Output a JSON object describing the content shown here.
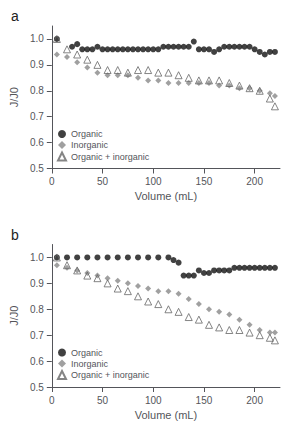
{
  "chart_data": [
    {
      "type": "scatter",
      "title": "a",
      "xlabel": "Volume (mL)",
      "ylabel": "J/J0",
      "xlim": [
        0,
        225
      ],
      "xticks": [
        0,
        50,
        100,
        150,
        200
      ],
      "ylim": [
        0.5,
        1.05
      ],
      "yticks": [
        0.5,
        0.6,
        0.7,
        0.8,
        0.9,
        {
          "value": 1.0,
          "label": "1.0"
        }
      ],
      "grid": false,
      "legend": "lower left",
      "series": [
        {
          "name": "Organic",
          "color": "#111111",
          "marker": "circle",
          "x": [
            5,
            20,
            25,
            30,
            35,
            40,
            45,
            50,
            55,
            60,
            65,
            70,
            75,
            80,
            85,
            90,
            95,
            100,
            105,
            110,
            115,
            120,
            125,
            130,
            135,
            140,
            145,
            150,
            155,
            160,
            165,
            170,
            175,
            180,
            185,
            190,
            195,
            200,
            205,
            210,
            215,
            220
          ],
          "values": [
            1.0,
            0.97,
            0.98,
            0.96,
            0.96,
            0.96,
            0.97,
            0.96,
            0.96,
            0.96,
            0.96,
            0.96,
            0.96,
            0.96,
            0.96,
            0.96,
            0.96,
            0.96,
            0.96,
            0.97,
            0.97,
            0.97,
            0.97,
            0.97,
            0.97,
            0.99,
            0.96,
            0.96,
            0.96,
            0.95,
            0.96,
            0.97,
            0.97,
            0.97,
            0.97,
            0.97,
            0.97,
            0.96,
            0.95,
            0.94,
            0.95,
            0.95
          ]
        },
        {
          "name": "Inorganic",
          "color": "#888888",
          "marker": "diamond",
          "x": [
            5,
            15,
            25,
            35,
            45,
            55,
            65,
            75,
            85,
            95,
            105,
            115,
            125,
            135,
            145,
            155,
            165,
            175,
            185,
            195,
            205,
            215,
            220
          ],
          "values": [
            0.94,
            0.93,
            0.91,
            0.89,
            0.87,
            0.86,
            0.86,
            0.86,
            0.85,
            0.84,
            0.84,
            0.83,
            0.83,
            0.83,
            0.83,
            0.83,
            0.82,
            0.82,
            0.81,
            0.81,
            0.8,
            0.79,
            0.78
          ]
        },
        {
          "name": "Organic + inorganic",
          "color": "#666666",
          "marker": "triangle-open",
          "x": [
            5,
            15,
            25,
            35,
            45,
            55,
            65,
            75,
            85,
            95,
            105,
            115,
            125,
            135,
            145,
            155,
            165,
            175,
            185,
            195,
            205,
            215,
            220
          ],
          "values": [
            1.0,
            0.96,
            0.94,
            0.92,
            0.9,
            0.88,
            0.88,
            0.87,
            0.88,
            0.88,
            0.87,
            0.87,
            0.86,
            0.85,
            0.84,
            0.84,
            0.84,
            0.83,
            0.82,
            0.81,
            0.8,
            0.77,
            0.74
          ]
        }
      ]
    },
    {
      "type": "scatter",
      "title": "b",
      "xlabel": "Volume (mL)",
      "ylabel": "J/J0",
      "xlim": [
        0,
        225
      ],
      "xticks": [
        0,
        50,
        100,
        150,
        200
      ],
      "ylim": [
        0.5,
        1.05
      ],
      "yticks": [
        0.5,
        0.6,
        0.7,
        0.8,
        0.9,
        {
          "value": 1.0,
          "label": "1.0"
        }
      ],
      "grid": false,
      "legend": "lower left",
      "series": [
        {
          "name": "Organic",
          "color": "#111111",
          "marker": "circle",
          "x": [
            5,
            15,
            25,
            35,
            45,
            55,
            65,
            75,
            85,
            95,
            105,
            115,
            120,
            125,
            130,
            135,
            140,
            145,
            150,
            155,
            160,
            165,
            170,
            175,
            180,
            185,
            190,
            195,
            200,
            205,
            210,
            215,
            220
          ],
          "values": [
            1.0,
            1.0,
            1.0,
            1.0,
            1.0,
            1.0,
            1.0,
            1.0,
            1.0,
            1.0,
            1.0,
            1.0,
            0.99,
            0.98,
            0.93,
            0.93,
            0.93,
            0.95,
            0.94,
            0.94,
            0.95,
            0.95,
            0.95,
            0.95,
            0.96,
            0.96,
            0.96,
            0.96,
            0.96,
            0.96,
            0.96,
            0.96,
            0.96
          ]
        },
        {
          "name": "Inorganic",
          "color": "#888888",
          "marker": "diamond",
          "x": [
            5,
            15,
            25,
            35,
            45,
            55,
            65,
            75,
            85,
            95,
            105,
            115,
            125,
            135,
            145,
            155,
            165,
            175,
            185,
            195,
            205,
            215,
            220
          ],
          "values": [
            0.97,
            0.96,
            0.95,
            0.94,
            0.93,
            0.92,
            0.91,
            0.9,
            0.89,
            0.88,
            0.87,
            0.87,
            0.86,
            0.84,
            0.82,
            0.8,
            0.79,
            0.78,
            0.76,
            0.74,
            0.72,
            0.71,
            0.71
          ]
        },
        {
          "name": "Organic + inorganic",
          "color": "#666666",
          "marker": "triangle-open",
          "x": [
            5,
            15,
            25,
            35,
            45,
            55,
            65,
            75,
            85,
            95,
            105,
            115,
            125,
            135,
            145,
            155,
            165,
            175,
            185,
            195,
            205,
            215,
            220
          ],
          "values": [
            1.0,
            0.97,
            0.95,
            0.93,
            0.92,
            0.9,
            0.88,
            0.87,
            0.85,
            0.83,
            0.82,
            0.8,
            0.79,
            0.77,
            0.76,
            0.74,
            0.73,
            0.72,
            0.72,
            0.71,
            0.7,
            0.69,
            0.68
          ]
        }
      ]
    }
  ]
}
